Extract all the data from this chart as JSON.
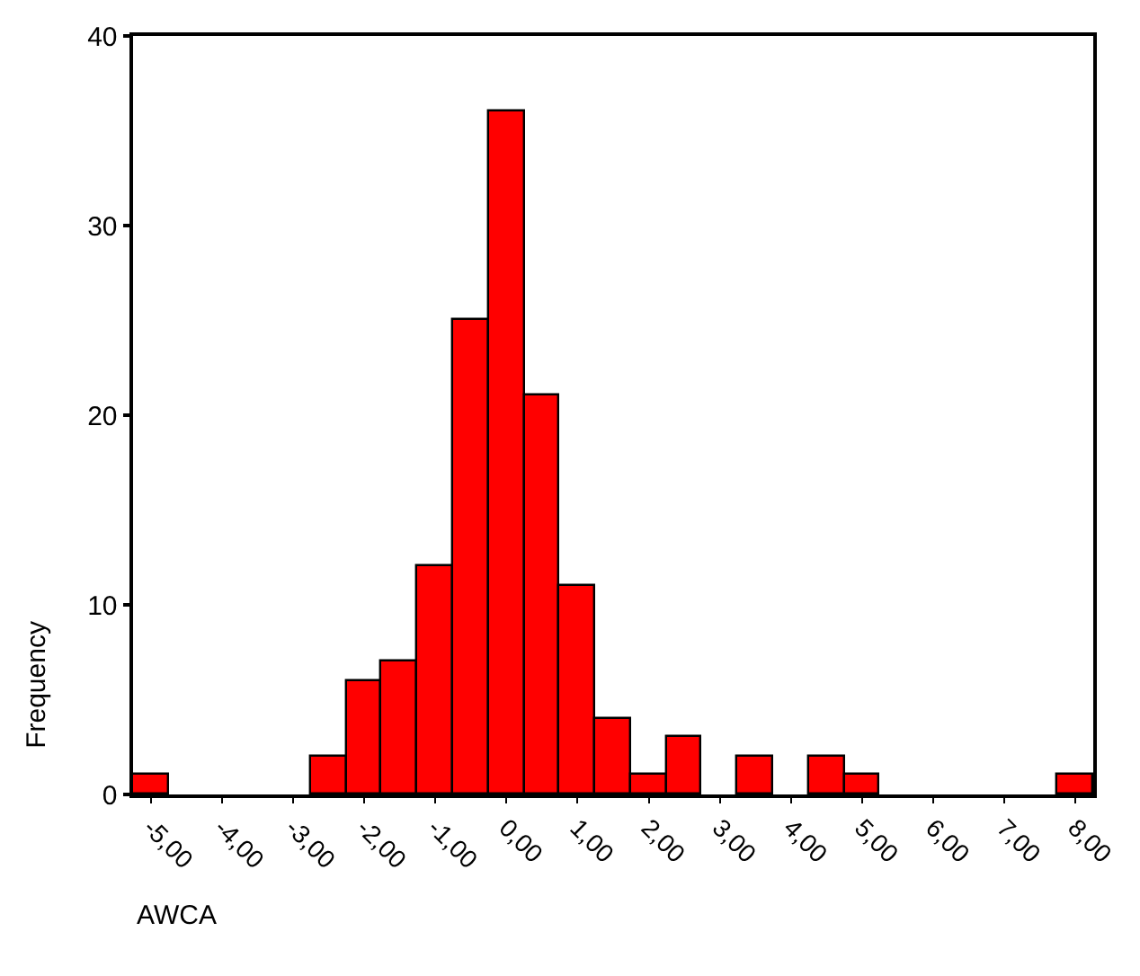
{
  "chart_data": {
    "type": "histogram",
    "xlabel": "AWCA",
    "ylabel": "Frequency",
    "bins": [
      -5.25,
      -4.75,
      -4.25,
      -3.75,
      -3.25,
      -2.75,
      -2.25,
      -1.75,
      -1.25,
      -0.75,
      -0.25,
      0.25,
      0.75,
      1.25,
      1.75,
      2.25,
      2.75,
      3.25,
      3.75,
      4.25,
      4.75,
      5.25,
      5.75,
      6.25,
      6.75,
      7.25,
      7.75,
      8.25
    ],
    "values": [
      1,
      0,
      0,
      0,
      0,
      2,
      6,
      7,
      12,
      25,
      36,
      21,
      11,
      4,
      1,
      3,
      0,
      2,
      0,
      2,
      1,
      0,
      0,
      0,
      0,
      0,
      1
    ],
    "color": "#ff0000",
    "xlim": [
      -5.25,
      8.25
    ],
    "xticks": [
      {
        "value": -5,
        "label": "-5,00"
      },
      {
        "value": -4,
        "label": "-4,00"
      },
      {
        "value": -3,
        "label": "-3,00"
      },
      {
        "value": -2,
        "label": "-2,00"
      },
      {
        "value": -1,
        "label": "-1,00"
      },
      {
        "value": 0,
        "label": "0,00"
      },
      {
        "value": 1,
        "label": "1,00"
      },
      {
        "value": 2,
        "label": "2,00"
      },
      {
        "value": 3,
        "label": "3,00"
      },
      {
        "value": 4,
        "label": "4,00"
      },
      {
        "value": 5,
        "label": "5,00"
      },
      {
        "value": 6,
        "label": "6,00"
      },
      {
        "value": 7,
        "label": "7,00"
      },
      {
        "value": 8,
        "label": "8,00"
      }
    ],
    "ylim": [
      0,
      40
    ],
    "yticks": [
      0,
      10,
      20,
      30,
      40
    ]
  }
}
